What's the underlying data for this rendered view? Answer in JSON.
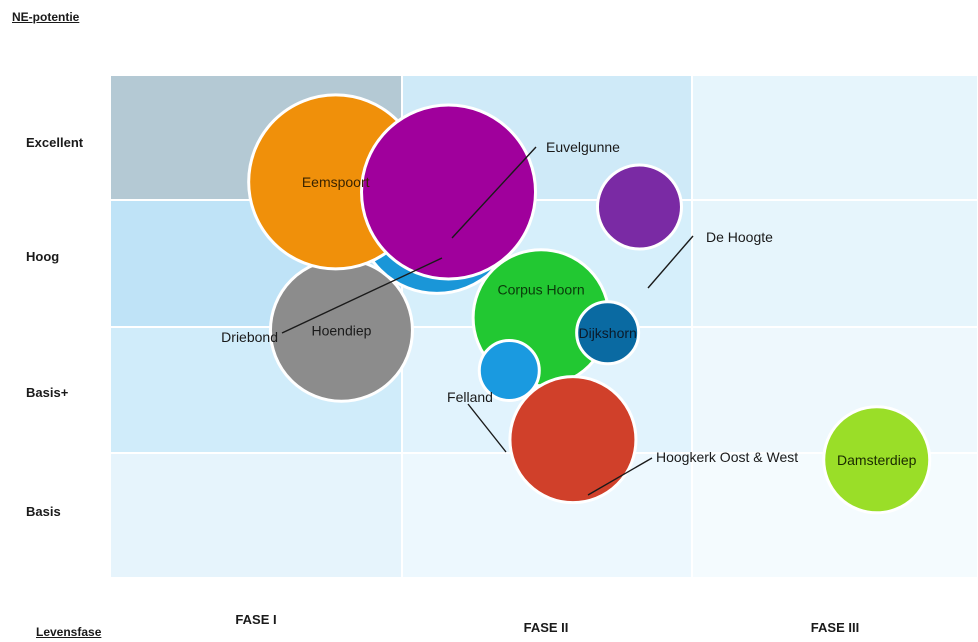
{
  "chart_data": {
    "type": "bubble",
    "y_axis_title": "NE-potentie",
    "x_axis_title": "Levensfase",
    "rows": [
      "Excellent",
      "Hoog",
      "Basis+",
      "Basis"
    ],
    "columns": [
      "FASE I",
      "FASE II",
      "FASE III"
    ],
    "colors": {
      "Eemspoort": "#f0900a",
      "Driebond": "#1a96d8",
      "Euvelgunne": "#a0009c",
      "De Hoogte": "#7a2aa4",
      "Hoendiep": "#8c8c8c",
      "Corpus Hoorn": "#22c832",
      "Dijkshorn": "#0a6aa2",
      "Felland": "#1a9ae0",
      "Hoogkerk Oost & West": "#d0402a",
      "Damsterdiep": "#9ade28"
    },
    "points": [
      {
        "name": "Eemspoort",
        "phase": 0.78,
        "potential": 3.15,
        "size": 87
      },
      {
        "name": "Driebond",
        "phase": 1.13,
        "potential": 2.9,
        "size": 80
      },
      {
        "name": "Euvelgunne",
        "phase": 1.17,
        "potential": 3.07,
        "size": 87
      },
      {
        "name": "De Hoogte",
        "phase": 1.83,
        "potential": 2.95,
        "size": 42
      },
      {
        "name": "Hoendiep",
        "phase": 0.8,
        "potential": 1.97,
        "size": 71
      },
      {
        "name": "Corpus Hoorn",
        "phase": 1.49,
        "potential": 2.07,
        "size": 68
      },
      {
        "name": "Dijkshorn",
        "phase": 1.72,
        "potential": 1.95,
        "size": 31
      },
      {
        "name": "Felland",
        "phase": 1.38,
        "potential": 1.65,
        "size": 30
      },
      {
        "name": "Hoogkerk Oost & West",
        "phase": 1.6,
        "potential": 1.1,
        "size": 63
      },
      {
        "name": "Damsterdiep",
        "phase": 2.65,
        "potential": 0.94,
        "size": 53
      }
    ]
  }
}
